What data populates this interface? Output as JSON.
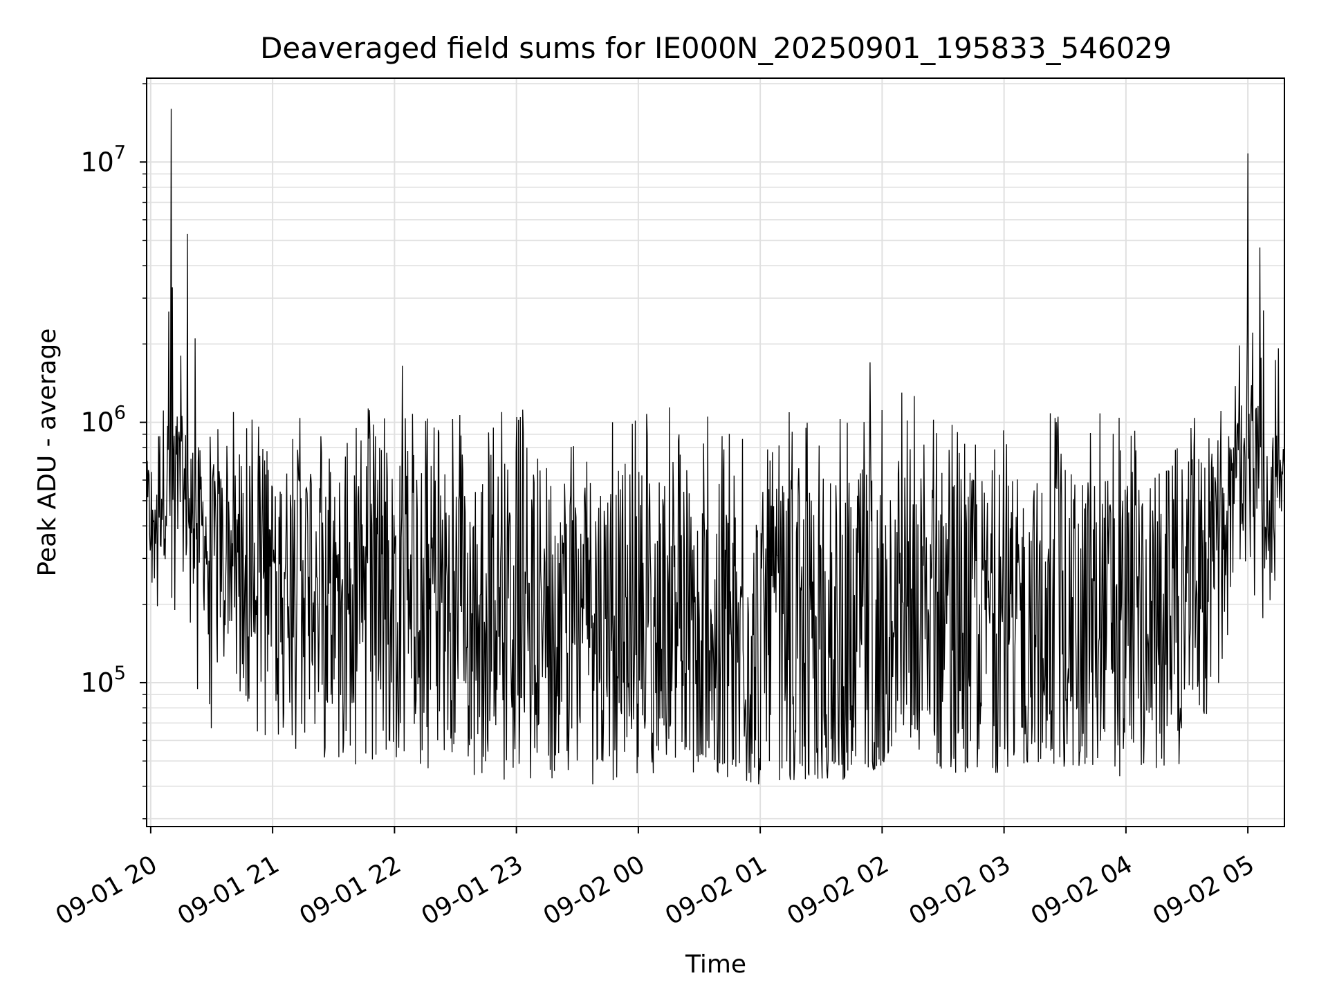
{
  "chart_data": {
    "type": "line",
    "title": "Deaveraged field sums for IE000N_20250901_195833_546029",
    "xlabel": "Time",
    "ylabel": "Peak ADU - average",
    "yscale": "log",
    "ylim": [
      28000,
      21000000
    ],
    "xlim": [
      "2025-09-01 19:58",
      "2025-09-02 05:18"
    ],
    "grid": true,
    "line_color": "#000000",
    "grid_color": "#e0e0e0",
    "x_ticks": [
      {
        "t": "2025-09-01 20:00",
        "label": "09-01 20"
      },
      {
        "t": "2025-09-01 21:00",
        "label": "09-01 21"
      },
      {
        "t": "2025-09-01 22:00",
        "label": "09-01 22"
      },
      {
        "t": "2025-09-01 23:00",
        "label": "09-01 23"
      },
      {
        "t": "2025-09-02 00:00",
        "label": "09-02 00"
      },
      {
        "t": "2025-09-02 01:00",
        "label": "09-02 01"
      },
      {
        "t": "2025-09-02 02:00",
        "label": "09-02 02"
      },
      {
        "t": "2025-09-02 03:00",
        "label": "09-02 03"
      },
      {
        "t": "2025-09-02 04:00",
        "label": "09-02 04"
      },
      {
        "t": "2025-09-02 05:00",
        "label": "09-02 05"
      }
    ],
    "y_ticks": [
      {
        "value": 100000,
        "base": "10",
        "exp": "5"
      },
      {
        "value": 1000000,
        "base": "10",
        "exp": "6"
      },
      {
        "value": 10000000,
        "base": "10",
        "exp": "7"
      }
    ],
    "series_envelope": {
      "times": [
        "2025-09-01 19:58",
        "2025-09-01 20:06",
        "2025-09-01 20:12",
        "2025-09-01 20:20",
        "2025-09-01 20:30",
        "2025-09-01 21:00",
        "2025-09-01 21:30",
        "2025-09-01 22:00",
        "2025-09-01 22:30",
        "2025-09-01 23:00",
        "2025-09-01 23:30",
        "2025-09-02 00:00",
        "2025-09-02 00:30",
        "2025-09-02 01:00",
        "2025-09-02 01:30",
        "2025-09-02 02:00",
        "2025-09-02 02:06",
        "2025-09-02 02:30",
        "2025-09-02 03:00",
        "2025-09-02 03:30",
        "2025-09-02 04:00",
        "2025-09-02 04:30",
        "2025-09-02 04:50",
        "2025-09-02 05:00",
        "2025-09-02 05:10",
        "2025-09-02 05:18"
      ],
      "max": [
        1500000,
        4000000,
        6500000,
        3500000,
        1100000,
        1100000,
        1200000,
        1150000,
        1100000,
        1150000,
        1100000,
        1150000,
        1150000,
        1100000,
        1150000,
        1200000,
        1500000,
        1100000,
        1100000,
        1150000,
        1100000,
        1100000,
        1700000,
        3500000,
        3000000,
        1800000
      ],
      "high": [
        700000,
        1200000,
        1200000,
        900000,
        700000,
        700000,
        800000,
        750000,
        700000,
        750000,
        700000,
        700000,
        600000,
        550000,
        600000,
        700000,
        900000,
        700000,
        600000,
        650000,
        650000,
        700000,
        1000000,
        1300000,
        1100000,
        900000
      ],
      "low": [
        250000,
        300000,
        280000,
        250000,
        150000,
        130000,
        110000,
        90000,
        85000,
        85000,
        80000,
        75000,
        55000,
        48000,
        50000,
        60000,
        90000,
        75000,
        55000,
        58000,
        60000,
        95000,
        350000,
        450000,
        300000,
        450000
      ],
      "min": [
        150000,
        140000,
        130000,
        65000,
        65000,
        58000,
        50000,
        45000,
        43000,
        42000,
        40000,
        42000,
        45000,
        40000,
        42000,
        43000,
        60000,
        45000,
        45000,
        47000,
        40000,
        48000,
        110000,
        250000,
        150000,
        300000
      ]
    },
    "spikes": [
      {
        "t": "2025-09-01 20:10",
        "value": 16000000
      },
      {
        "t": "2025-09-02 05:00",
        "value": 10800000
      },
      {
        "t": "2025-09-02 05:06",
        "value": 4700000
      },
      {
        "t": "2025-09-01 20:18",
        "value": 5300000
      },
      {
        "t": "2025-09-02 01:54",
        "value": 1700000
      },
      {
        "t": "2025-09-01 22:04",
        "value": 1650000
      },
      {
        "t": "2025-09-01 20:22",
        "value": 2100000
      }
    ]
  }
}
